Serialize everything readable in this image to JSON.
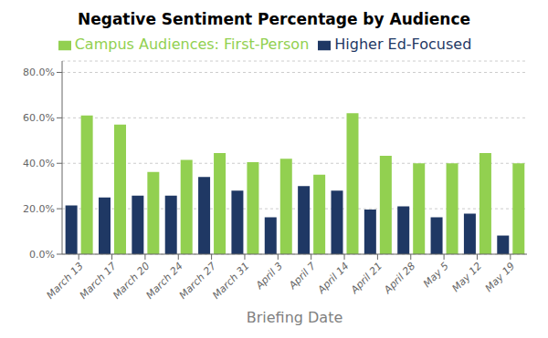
{
  "chart_data": {
    "type": "bar",
    "title": "Negative Sentiment Percentage by Audience",
    "x_label": "Briefing Date",
    "categories": [
      "March 13",
      "March 17",
      "March 20",
      "March 24",
      "March 27",
      "March 31",
      "April 3",
      "April 7",
      "April 14",
      "April 21",
      "April 28",
      "May 5",
      "May 12",
      "May 19"
    ],
    "series": [
      {
        "name": "Higher Ed-Focused",
        "color": "#1f3864",
        "values": [
          0.215,
          0.25,
          0.258,
          0.258,
          0.34,
          0.28,
          0.162,
          0.3,
          0.28,
          0.196,
          0.21,
          0.162,
          0.178,
          0.082
        ]
      },
      {
        "name": "Campus Audiences: First-Person",
        "color": "#92d050",
        "values": [
          0.61,
          0.57,
          0.362,
          0.415,
          0.445,
          0.405,
          0.42,
          0.35,
          0.62,
          0.433,
          0.4,
          0.4,
          0.445,
          0.4
        ]
      }
    ],
    "ylim": [
      0,
      0.85
    ],
    "yticks": [
      {
        "value": 0.0,
        "label": "0.0%"
      },
      {
        "value": 0.2,
        "label": "20.0%"
      },
      {
        "value": 0.4,
        "label": "40.0%"
      },
      {
        "value": 0.6,
        "label": "60.0%"
      },
      {
        "value": 0.8,
        "label": "80.0%"
      }
    ],
    "grid": true,
    "legend": "top"
  }
}
